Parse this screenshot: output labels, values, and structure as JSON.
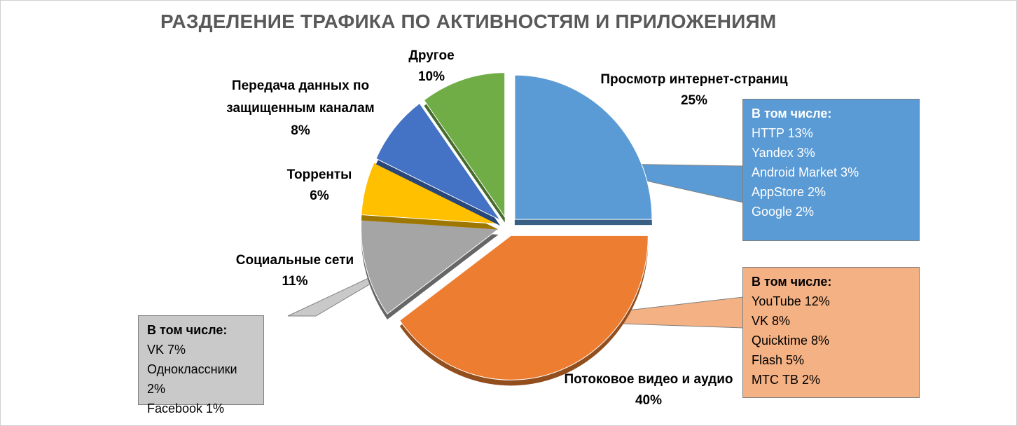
{
  "chart_data": {
    "type": "pie",
    "title": "РАЗДЕЛЕНИЕ ТРАФИКА ПО АКТИВНОСТЯМ И ПРИЛОЖЕНИЯМ",
    "slices": [
      {
        "label": "Просмотр интернет-страниц",
        "value": 25,
        "value_label": "25%",
        "color": "#5b9bd5"
      },
      {
        "label": "Потоковое видео и аудио",
        "value": 40,
        "value_label": "40%",
        "color": "#ed7d31"
      },
      {
        "label": "Социальные сети",
        "value": 11,
        "value_label": "11%",
        "color": "#a5a5a5"
      },
      {
        "label": "Торренты",
        "value": 6,
        "value_label": "6%",
        "color": "#ffc000"
      },
      {
        "label": "Передача данных по защищенным каналам",
        "value": 8,
        "value_label": "8%",
        "color": "#4472c4"
      },
      {
        "label": "Другое",
        "value": 10,
        "value_label": "10%",
        "color": "#70ad47"
      }
    ],
    "callouts": [
      {
        "slice": "Просмотр интернет-страниц",
        "header": "В том числе:",
        "items": [
          "HTTP 13%",
          "Yandex 3%",
          "Android Market 3%",
          "AppStore 2%",
          "Google 2%"
        ]
      },
      {
        "slice": "Потоковое видео и аудио",
        "header": "В том числе:",
        "items": [
          "YouTube 12%",
          "VK 8%",
          "Quicktime 8%",
          "Flash 5%",
          "МТС ТВ 2%"
        ]
      },
      {
        "slice": "Социальные сети",
        "header": "В том числе:",
        "items": [
          "VK 7%",
          "Одноклассники 2%",
          "Facebook 1%"
        ]
      }
    ]
  }
}
